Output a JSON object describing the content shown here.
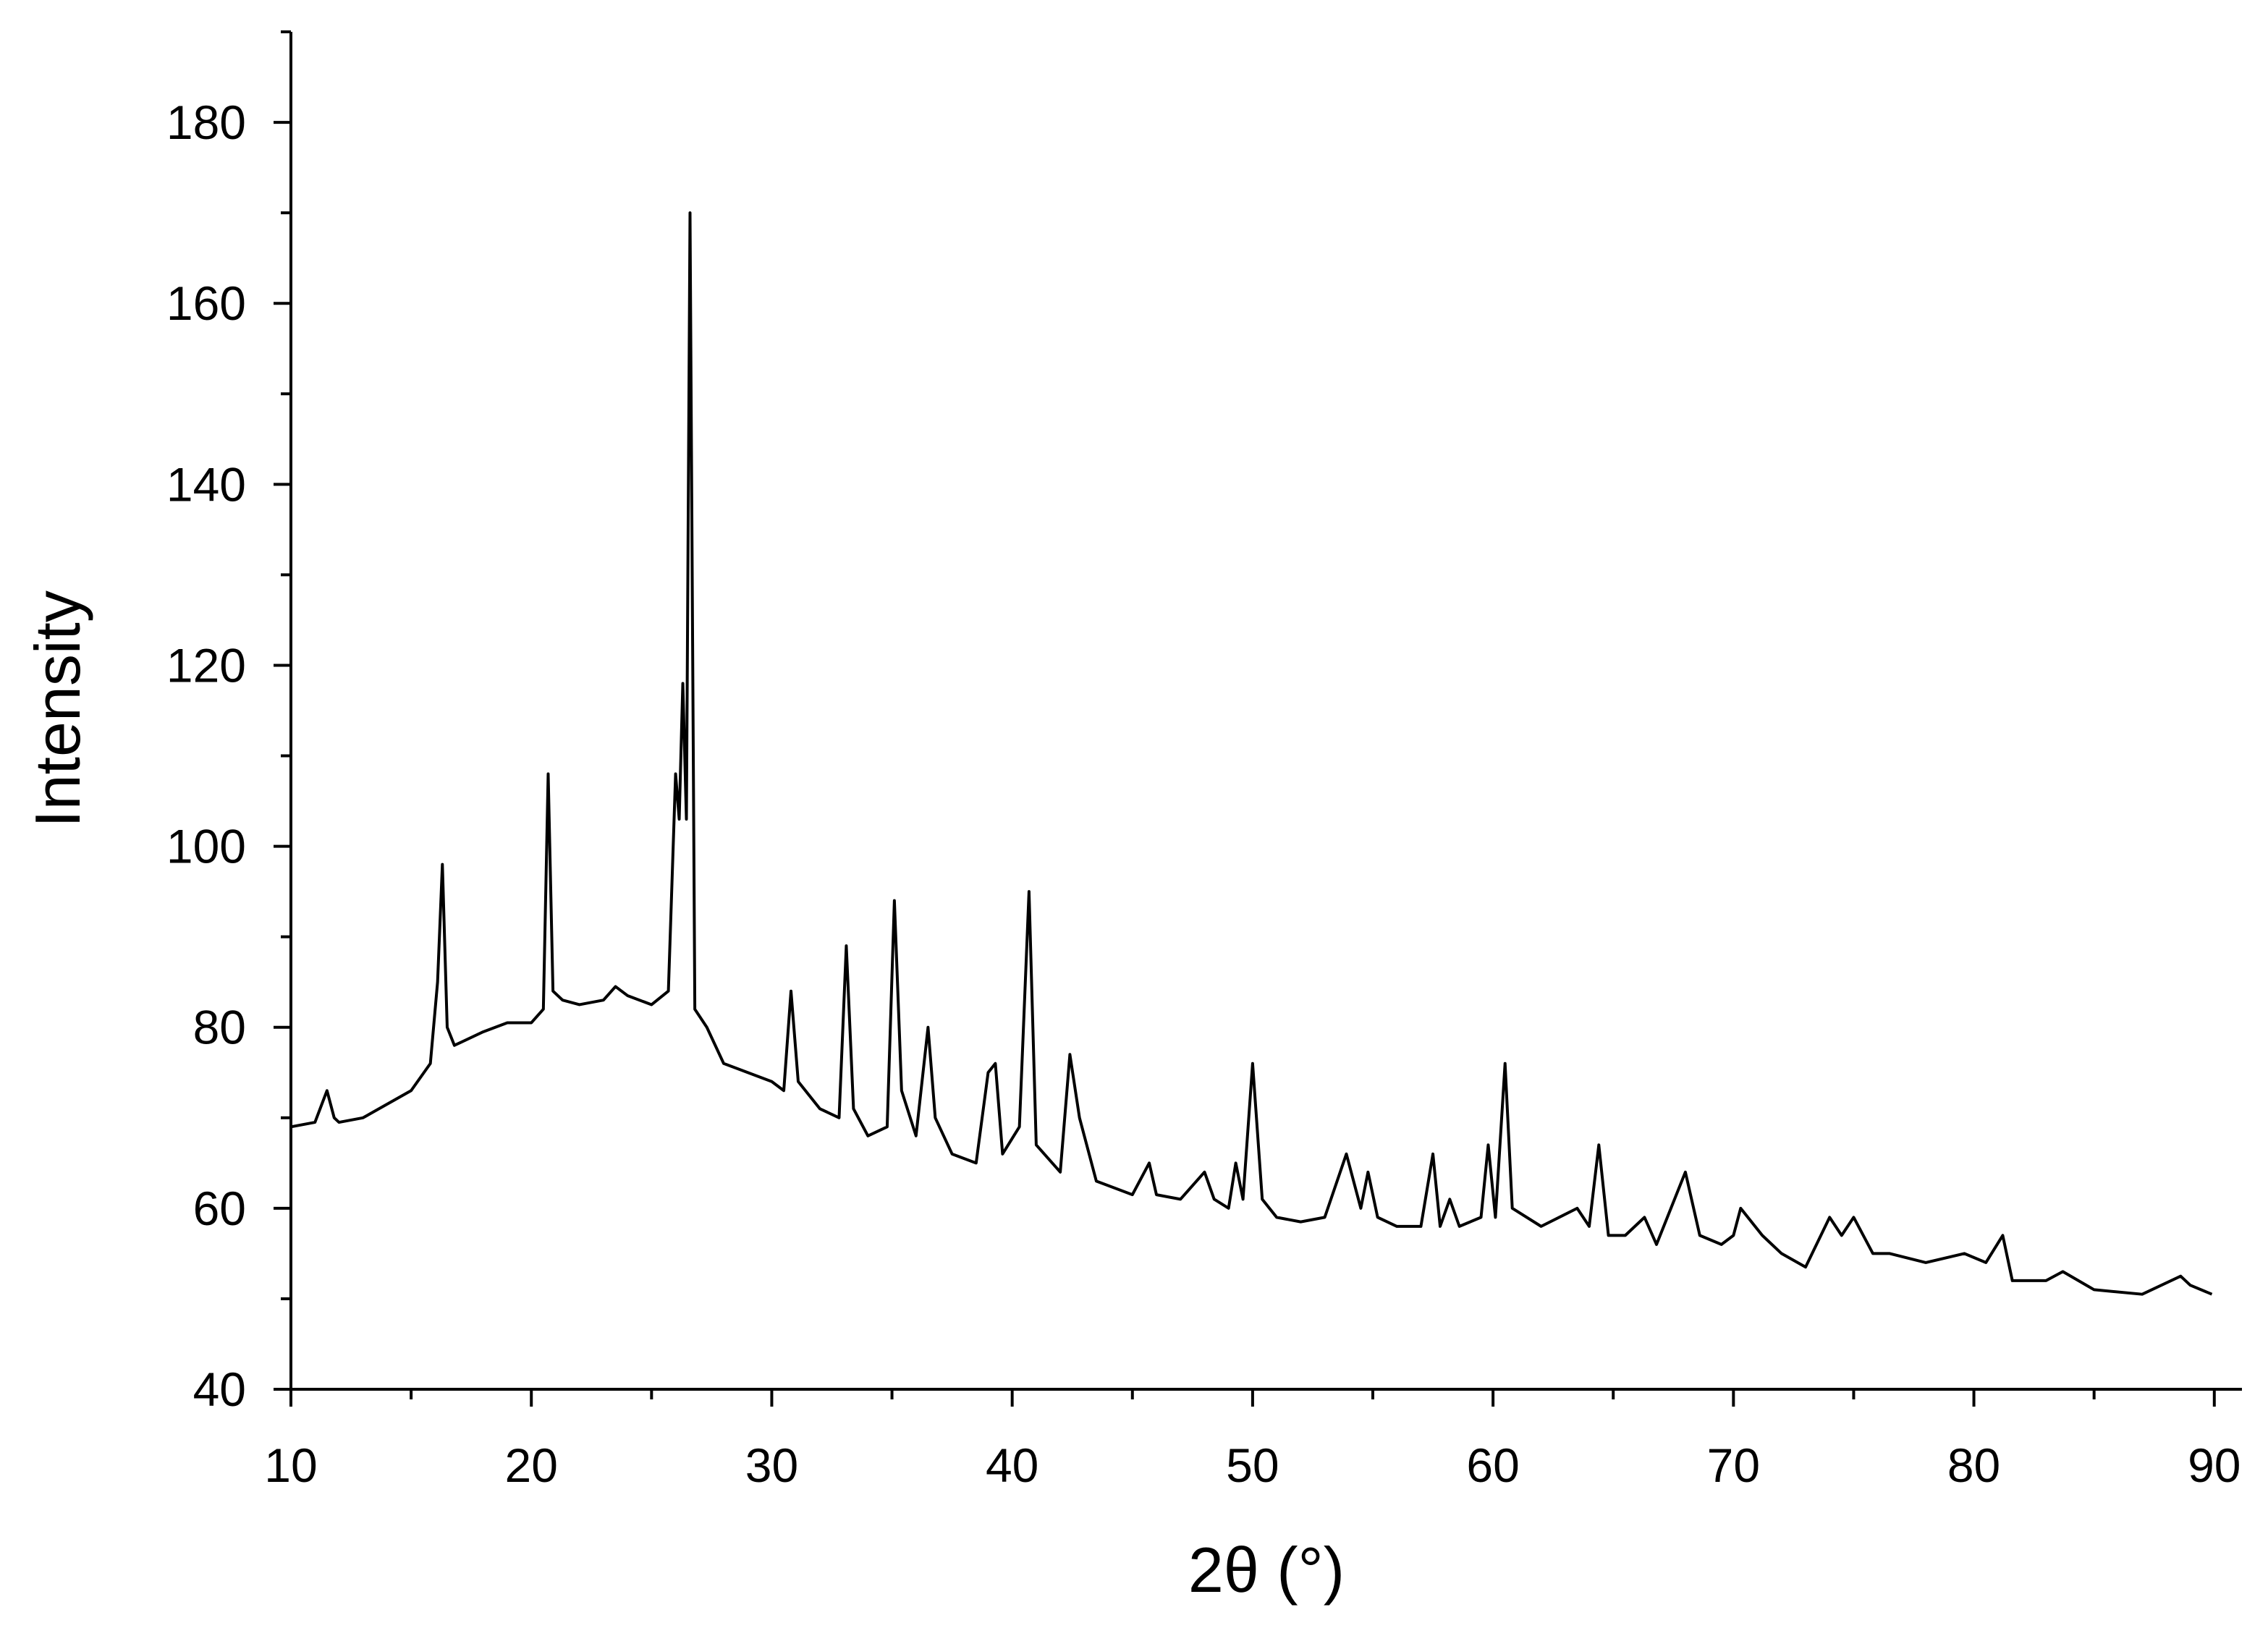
{
  "chart_data": {
    "type": "line",
    "x_label": "2θ (°)",
    "y_label": "Intensity",
    "xlim": [
      10,
      91.15
    ],
    "ylim": [
      40,
      190
    ],
    "xticks": [
      10,
      20,
      30,
      40,
      50,
      60,
      70,
      80,
      90
    ],
    "yticks": [
      40,
      60,
      80,
      100,
      120,
      140,
      160,
      180
    ],
    "xminorticks": [
      15,
      25,
      35,
      45,
      55,
      65,
      75,
      85
    ],
    "yminorticks": [
      50,
      70,
      90,
      110,
      130,
      150,
      170,
      190
    ],
    "color": "#000000",
    "x": [
      10,
      11,
      11.5,
      11.8,
      12,
      13,
      14,
      15,
      15.8,
      16.1,
      16.3,
      16.5,
      16.8,
      18,
      19,
      20,
      20.5,
      20.7,
      20.9,
      21.3,
      22,
      23,
      23.5,
      24,
      25,
      25.7,
      26,
      26.15,
      26.3,
      26.45,
      26.6,
      26.8,
      27.3,
      28,
      29,
      30,
      30.5,
      30.8,
      31.1,
      32,
      32.8,
      33.1,
      33.4,
      34,
      34.8,
      35.1,
      35.4,
      36,
      36.5,
      36.8,
      37.5,
      38.5,
      39,
      39.3,
      39.6,
      40.3,
      40.7,
      41,
      42,
      42.4,
      42.8,
      43.5,
      45,
      45.7,
      46,
      47,
      48,
      48.4,
      49,
      49.3,
      49.6,
      50,
      50.4,
      51,
      52,
      53,
      53.9,
      54.5,
      54.8,
      55.2,
      56,
      57,
      57.5,
      57.8,
      58.2,
      58.6,
      59.5,
      59.8,
      60.1,
      60.5,
      60.8,
      62,
      63.5,
      64,
      64.4,
      64.8,
      65.5,
      66.3,
      66.8,
      68,
      68.6,
      69.5,
      70,
      70.3,
      70.6,
      71.2,
      72,
      73,
      74,
      74.5,
      75,
      75.8,
      76.5,
      78,
      79.6,
      80.5,
      81.2,
      81.6,
      83,
      83.7,
      85,
      87,
      88.6,
      89,
      89.9
    ],
    "values": [
      69,
      69.5,
      73,
      70,
      69.5,
      70,
      71.5,
      73,
      76,
      85,
      98,
      80,
      78,
      79.5,
      80.5,
      80.5,
      82,
      108,
      84,
      83,
      82.5,
      83,
      84.5,
      83.5,
      82.5,
      84,
      108,
      103,
      118,
      103,
      170,
      82,
      80,
      76,
      75,
      74,
      73,
      84,
      74,
      71,
      70,
      89,
      71,
      68,
      69,
      94,
      73,
      68,
      80,
      70,
      66,
      65,
      75,
      76,
      66,
      69,
      95,
      67,
      64,
      77,
      70,
      63,
      61.5,
      65,
      61.5,
      61,
      64,
      61,
      60,
      65,
      61,
      76,
      61,
      59,
      58.5,
      59,
      66,
      60,
      64,
      59,
      58,
      58,
      66,
      58,
      61,
      58,
      59,
      67,
      59,
      76,
      60,
      58,
      60,
      58,
      67,
      57,
      57,
      59,
      56,
      64,
      57,
      56,
      57,
      60,
      59,
      57,
      55,
      53.5,
      59,
      57,
      59,
      55,
      55,
      54,
      55,
      54,
      57,
      52,
      52,
      53,
      51,
      50.5,
      52.5,
      51.5,
      50.5
    ]
  }
}
